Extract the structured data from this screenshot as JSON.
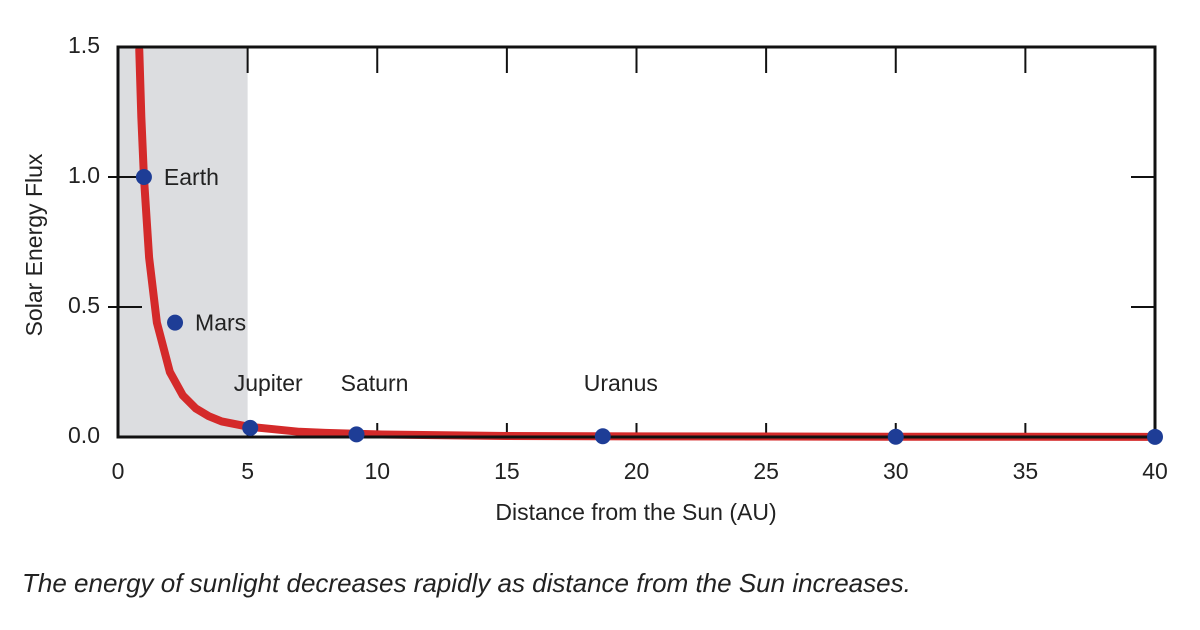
{
  "chart_data": {
    "type": "line",
    "x_label": "Distance from the Sun (AU)",
    "y_label": "Solar Energy Flux",
    "caption": "The energy of sunlight decreases rapidly as distance from the Sun increases.",
    "xlim": [
      0,
      40
    ],
    "xticks": [
      0,
      5,
      10,
      15,
      20,
      25,
      30,
      35,
      40
    ],
    "ylim": [
      0,
      1.5
    ],
    "yticks": [
      {
        "value": 0,
        "label": "0.0"
      },
      0.5,
      {
        "value": 1,
        "label": "1.0"
      },
      1.5
    ],
    "shaded_x": [
      0,
      5
    ],
    "shade_color": "#dcdde0",
    "curve": {
      "color": "#d42a2a",
      "x": [
        0.82,
        0.9,
        1,
        1.2,
        1.5,
        2,
        2.5,
        3,
        3.5,
        4,
        5,
        6,
        7,
        8,
        10,
        15,
        20,
        30,
        40
      ],
      "y": [
        1.49,
        1.23,
        1,
        0.69,
        0.44,
        0.25,
        0.16,
        0.11,
        0.08,
        0.06,
        0.04,
        0.03,
        0.02,
        0.016,
        0.01,
        0.004,
        0.0025,
        0.0011,
        0.0006
      ]
    },
    "points": {
      "color": "#1e3d96",
      "x": [
        1,
        2.2,
        5.1,
        9.2,
        18.7,
        30,
        40
      ],
      "y": [
        1,
        0.44,
        0.035,
        0.01,
        0.003,
        0.001,
        0.0006
      ],
      "labels": [
        "Earth",
        "Mars",
        "Jupiter",
        "Saturn",
        "Uranus",
        null,
        null
      ]
    }
  }
}
